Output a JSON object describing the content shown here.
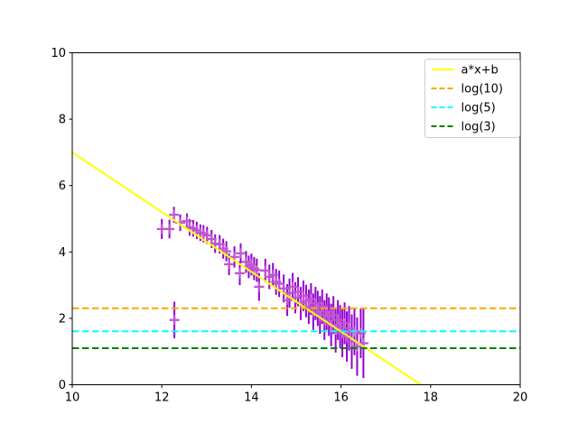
{
  "figure": {
    "background": "#ffffff",
    "title": ""
  },
  "chart_data": {
    "type": "scatter",
    "title": "",
    "xlabel": "",
    "ylabel": "",
    "xlim": [
      10,
      20
    ],
    "ylim": [
      0,
      10
    ],
    "x_ticks": [
      "10",
      "12",
      "14",
      "16",
      "18",
      "20"
    ],
    "x_tick_values": [
      10,
      12,
      14,
      16,
      18,
      20
    ],
    "y_ticks": [
      "0",
      "2",
      "4",
      "6",
      "8",
      "10"
    ],
    "y_tick_values": [
      0,
      2,
      4,
      6,
      8,
      10
    ],
    "grid": false,
    "legend": {
      "position": "upper right",
      "border_color": "#cccccc",
      "entries": [
        {
          "label": "a*x+b",
          "color": "#ffff00",
          "style": "solid"
        },
        {
          "label": "log(10)",
          "color": "#ffa500",
          "style": "dashed"
        },
        {
          "label": "log(5)",
          "color": "#00ffff",
          "style": "dashed"
        },
        {
          "label": "log(3)",
          "color": "#008000",
          "style": "dashed"
        }
      ]
    },
    "series": [
      {
        "name": "measured-data",
        "type": "errorbar",
        "marker": "plus",
        "marker_color": "#bf55d3",
        "error_color": "#9400d3",
        "points_format": [
          "x",
          "y",
          "yerr"
        ],
        "points": [
          [
            12.0,
            4.69,
            0.3
          ],
          [
            12.17,
            4.69,
            0.28
          ],
          [
            12.27,
            5.12,
            0.24
          ],
          [
            12.28,
            1.95,
            0.55
          ],
          [
            12.41,
            4.88,
            0.25
          ],
          [
            12.56,
            4.93,
            0.23
          ],
          [
            12.62,
            4.74,
            0.25
          ],
          [
            12.7,
            4.71,
            0.25
          ],
          [
            12.78,
            4.65,
            0.26
          ],
          [
            12.86,
            4.58,
            0.25
          ],
          [
            12.93,
            4.55,
            0.26
          ],
          [
            13.01,
            4.5,
            0.26
          ],
          [
            13.11,
            4.39,
            0.27
          ],
          [
            13.19,
            4.25,
            0.28
          ],
          [
            13.29,
            4.23,
            0.28
          ],
          [
            13.37,
            4.1,
            0.3
          ],
          [
            13.44,
            4.02,
            0.3
          ],
          [
            13.5,
            3.63,
            0.33
          ],
          [
            13.62,
            3.85,
            0.32
          ],
          [
            13.74,
            3.36,
            0.36
          ],
          [
            13.76,
            3.96,
            0.3
          ],
          [
            13.88,
            3.7,
            0.33
          ],
          [
            13.94,
            3.55,
            0.34
          ],
          [
            14.0,
            3.62,
            0.33
          ],
          [
            14.06,
            3.5,
            0.35
          ],
          [
            14.12,
            3.45,
            0.35
          ],
          [
            14.17,
            2.95,
            0.42
          ],
          [
            14.31,
            3.44,
            0.35
          ],
          [
            14.4,
            3.25,
            0.37
          ],
          [
            14.48,
            3.31,
            0.36
          ],
          [
            14.55,
            3.1,
            0.39
          ],
          [
            14.62,
            3.04,
            0.4
          ],
          [
            14.72,
            2.9,
            0.42
          ],
          [
            14.8,
            2.55,
            0.48
          ],
          [
            14.85,
            2.76,
            0.44
          ],
          [
            14.92,
            2.95,
            0.42
          ],
          [
            14.98,
            2.62,
            0.47
          ],
          [
            15.04,
            2.8,
            0.44
          ],
          [
            15.1,
            2.45,
            0.5
          ],
          [
            15.16,
            2.68,
            0.46
          ],
          [
            15.22,
            2.52,
            0.49
          ],
          [
            15.28,
            2.35,
            0.52
          ],
          [
            15.33,
            2.58,
            0.48
          ],
          [
            15.38,
            2.2,
            0.55
          ],
          [
            15.43,
            2.45,
            0.5
          ],
          [
            15.48,
            2.3,
            0.53
          ],
          [
            15.53,
            2.1,
            0.57
          ],
          [
            15.58,
            2.35,
            0.52
          ],
          [
            15.63,
            1.95,
            0.6
          ],
          [
            15.68,
            2.2,
            0.55
          ],
          [
            15.73,
            2.05,
            0.58
          ],
          [
            15.78,
            1.8,
            0.64
          ],
          [
            15.83,
            2.1,
            0.57
          ],
          [
            15.88,
            1.65,
            0.68
          ],
          [
            15.93,
            1.95,
            0.6
          ],
          [
            15.98,
            1.75,
            0.65
          ],
          [
            16.03,
            1.55,
            0.72
          ],
          [
            16.08,
            1.85,
            0.63
          ],
          [
            16.13,
            1.45,
            0.76
          ],
          [
            16.18,
            1.7,
            0.67
          ],
          [
            16.24,
            1.3,
            0.82
          ],
          [
            16.3,
            1.6,
            0.71
          ],
          [
            16.36,
            1.15,
            0.88
          ],
          [
            16.44,
            1.55,
            0.75
          ],
          [
            16.5,
            1.25,
            1.05
          ]
        ]
      },
      {
        "name": "fit-line",
        "label": "a*x+b",
        "type": "line",
        "style": "solid",
        "color": "#ffff00",
        "x": [
          10,
          17.78
        ],
        "y": [
          7.0,
          0.0
        ]
      },
      {
        "name": "hline-log10",
        "label": "log(10)",
        "type": "hline",
        "style": "dashed",
        "color": "#ffa500",
        "y": 2.303
      },
      {
        "name": "hline-log5",
        "label": "log(5)",
        "type": "hline",
        "style": "dashed",
        "color": "#00ffff",
        "y": 1.609
      },
      {
        "name": "hline-log3",
        "label": "log(3)",
        "type": "hline",
        "style": "dashed",
        "color": "#008000",
        "y": 1.099
      }
    ]
  }
}
